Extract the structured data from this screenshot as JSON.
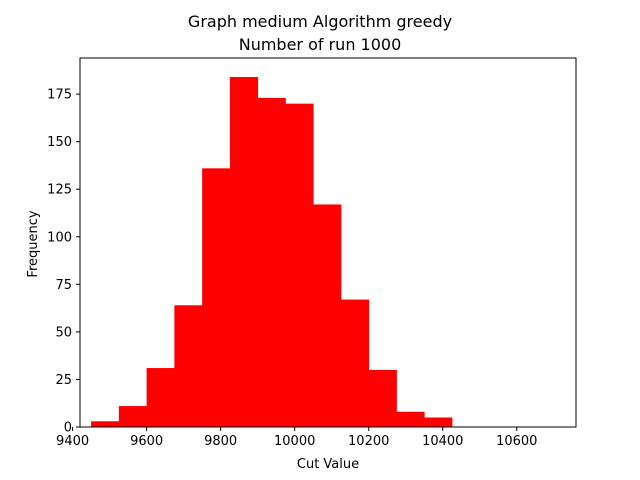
{
  "chart_data": {
    "type": "bar",
    "title": "Graph medium Algorithm greedy",
    "subtitle": "Number of run 1000",
    "xlabel": "Cut Value",
    "ylabel": "Frequency",
    "xlim": [
      9420,
      10760
    ],
    "ylim": [
      0,
      194
    ],
    "x_ticks": [
      9400,
      9600,
      9800,
      10000,
      10200,
      10400,
      10600
    ],
    "y_ticks": [
      0,
      25,
      50,
      75,
      100,
      125,
      150,
      175
    ],
    "bins": [
      {
        "start": 9450,
        "end": 9525,
        "count": 3
      },
      {
        "start": 9525,
        "end": 9600,
        "count": 11
      },
      {
        "start": 9600,
        "end": 9675,
        "count": 31
      },
      {
        "start": 9675,
        "end": 9750,
        "count": 64
      },
      {
        "start": 9750,
        "end": 9825,
        "count": 136
      },
      {
        "start": 9825,
        "end": 9900,
        "count": 184
      },
      {
        "start": 9900,
        "end": 9975,
        "count": 173
      },
      {
        "start": 9975,
        "end": 10050,
        "count": 170
      },
      {
        "start": 10050,
        "end": 10125,
        "count": 117
      },
      {
        "start": 10125,
        "end": 10200,
        "count": 67
      },
      {
        "start": 10200,
        "end": 10275,
        "count": 30
      },
      {
        "start": 10275,
        "end": 10350,
        "count": 8
      },
      {
        "start": 10350,
        "end": 10425,
        "count": 5
      },
      {
        "start": 10425,
        "end": 10500,
        "count": 0
      },
      {
        "start": 10500,
        "end": 10575,
        "count": 0
      },
      {
        "start": 10575,
        "end": 10650,
        "count": 0
      }
    ],
    "bar_color": "#ff0000",
    "grid": false
  }
}
